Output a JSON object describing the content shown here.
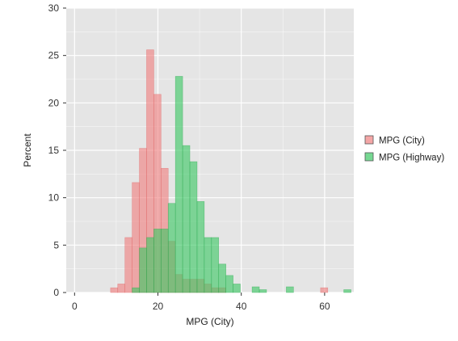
{
  "chart_data": {
    "type": "histogram",
    "xlabel": "MPG (City)",
    "ylabel": "Percent",
    "xlim": [
      -2,
      67
    ],
    "ylim": [
      0,
      30
    ],
    "x_ticks": [
      0,
      20,
      40,
      60
    ],
    "y_ticks": [
      0,
      5,
      10,
      15,
      20,
      25,
      30
    ],
    "bin_width": 1.73,
    "grid": true,
    "legend_position": "right",
    "colors": {
      "panel_background": "#e5e5e5",
      "grid": "#ffffff",
      "city": "#f08080",
      "highway": "#3cc864",
      "overlap": "#7fa24f"
    },
    "series": [
      {
        "name": "MPG (City)",
        "bins": [
          {
            "x0": 8.63,
            "value": 0.5
          },
          {
            "x0": 10.36,
            "value": 0.9
          },
          {
            "x0": 12.09,
            "value": 5.8
          },
          {
            "x0": 13.82,
            "value": 11.6
          },
          {
            "x0": 15.55,
            "value": 15.2
          },
          {
            "x0": 17.28,
            "value": 25.6
          },
          {
            "x0": 19.01,
            "value": 20.9
          },
          {
            "x0": 20.74,
            "value": 13.1
          },
          {
            "x0": 22.47,
            "value": 5.4
          },
          {
            "x0": 24.2,
            "value": 1.9
          },
          {
            "x0": 25.93,
            "value": 1.4
          },
          {
            "x0": 27.66,
            "value": 1.4
          },
          {
            "x0": 29.39,
            "value": 1.4
          },
          {
            "x0": 31.12,
            "value": 0.9
          },
          {
            "x0": 32.85,
            "value": 0.5
          },
          {
            "x0": 34.58,
            "value": 0.5
          },
          {
            "x0": 59.02,
            "value": 0.5
          }
        ]
      },
      {
        "name": "MPG (Highway)",
        "bins": [
          {
            "x0": 13.82,
            "value": 0.5
          },
          {
            "x0": 15.55,
            "value": 4.7
          },
          {
            "x0": 17.28,
            "value": 5.8
          },
          {
            "x0": 19.01,
            "value": 6.7
          },
          {
            "x0": 20.74,
            "value": 6.7
          },
          {
            "x0": 22.47,
            "value": 9.4
          },
          {
            "x0": 24.2,
            "value": 22.8
          },
          {
            "x0": 25.93,
            "value": 15.5
          },
          {
            "x0": 27.66,
            "value": 13.8
          },
          {
            "x0": 29.39,
            "value": 9.6
          },
          {
            "x0": 31.12,
            "value": 5.8
          },
          {
            "x0": 32.85,
            "value": 5.8
          },
          {
            "x0": 34.58,
            "value": 3.0
          },
          {
            "x0": 36.31,
            "value": 1.8
          },
          {
            "x0": 38.04,
            "value": 0.9
          },
          {
            "x0": 42.6,
            "value": 0.6
          },
          {
            "x0": 44.33,
            "value": 0.3
          },
          {
            "x0": 50.8,
            "value": 0.6
          },
          {
            "x0": 64.6,
            "value": 0.3
          }
        ]
      }
    ]
  }
}
